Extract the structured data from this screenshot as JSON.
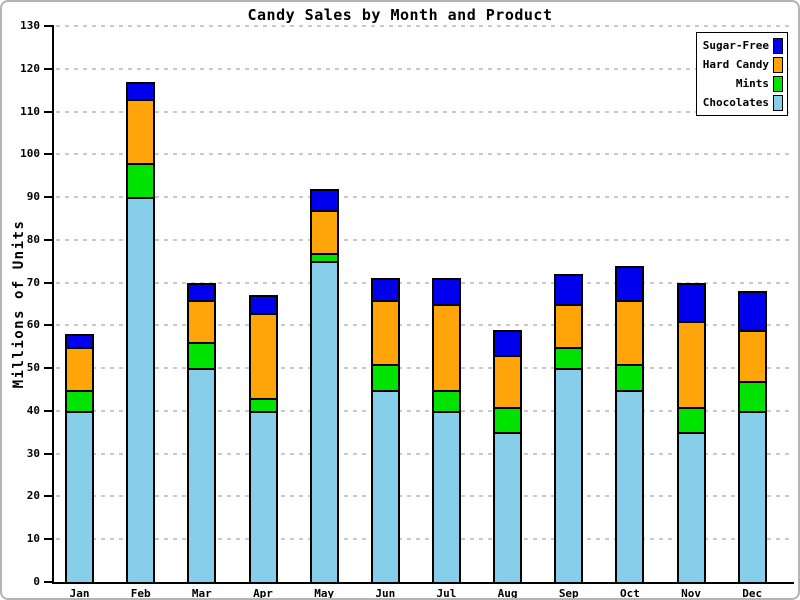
{
  "window": {
    "background": "#ffffff",
    "border_color": "#b4b4b4"
  },
  "chart_data": {
    "type": "bar",
    "stacked": true,
    "title": "Candy Sales by Month and Product",
    "ylabel": "Millions of Units",
    "xlabel": "",
    "ylim": [
      0,
      130
    ],
    "yticks": [
      "0",
      "10",
      "20",
      "30",
      "40",
      "50",
      "60",
      "70",
      "80",
      "90",
      "100",
      "110",
      "120",
      "130"
    ],
    "grid": "horizontal-dashed",
    "categories": [
      "Jan",
      "Feb",
      "Mar",
      "Apr",
      "May",
      "Jun",
      "Jul",
      "Aug",
      "Sep",
      "Oct",
      "Nov",
      "Dec"
    ],
    "series": [
      {
        "name": "Chocolates",
        "color": "#87CEEB",
        "values": [
          40,
          90,
          50,
          40,
          75,
          45,
          40,
          35,
          50,
          45,
          35,
          40
        ]
      },
      {
        "name": "Mints",
        "color": "#00E300",
        "values": [
          5,
          8,
          6,
          3,
          2,
          6,
          5,
          6,
          5,
          6,
          6,
          7
        ]
      },
      {
        "name": "Hard Candy",
        "color": "#FFA50A",
        "values": [
          10,
          15,
          10,
          20,
          10,
          15,
          20,
          12,
          10,
          15,
          20,
          12
        ]
      },
      {
        "name": "Sugar-Free",
        "color": "#0000EE",
        "values": [
          3,
          4,
          4,
          4,
          5,
          5,
          6,
          6,
          7,
          8,
          9,
          9
        ]
      }
    ],
    "stack_totals": [
      58,
      117,
      70,
      67,
      92,
      71,
      71,
      59,
      72,
      74,
      70,
      68
    ],
    "legend": {
      "position": "top-right",
      "entries": [
        "Sugar-Free",
        "Hard Candy",
        "Mints",
        "Chocolates"
      ]
    },
    "colors": {
      "grid": "#c9c9c9",
      "axis": "#000000",
      "text": "#000000"
    }
  }
}
